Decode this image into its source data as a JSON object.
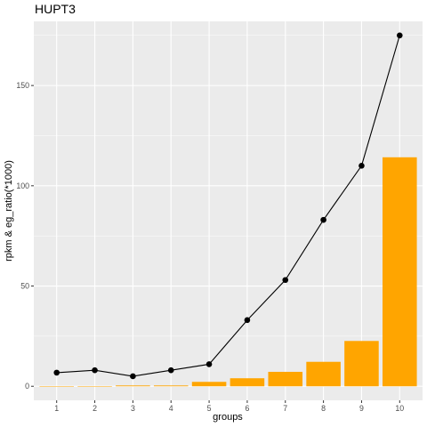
{
  "chart_data": {
    "type": "bar",
    "title": "HUPT3",
    "xlabel": "groups",
    "ylabel": "rpkm & eg_ratio(*1000)",
    "categories": [
      "1",
      "2",
      "3",
      "4",
      "5",
      "6",
      "7",
      "8",
      "9",
      "10"
    ],
    "ylim": [
      -7,
      182
    ],
    "yticks": [
      0,
      50,
      100,
      150
    ],
    "grid": true,
    "legend": "none",
    "series": [
      {
        "type": "bar",
        "color": "#FFA500",
        "values": [
          0,
          0,
          0.4,
          0.4,
          2.2,
          4.0,
          7.2,
          12.2,
          22.6,
          114.2
        ]
      },
      {
        "type": "line",
        "color": "#000000",
        "values": [
          6.8,
          8.0,
          5.0,
          8.0,
          11.0,
          33.0,
          53.0,
          83.0,
          110.0,
          175.0
        ]
      }
    ],
    "panel_background": "#EBEBEB",
    "grid_color": "#FFFFFF"
  }
}
